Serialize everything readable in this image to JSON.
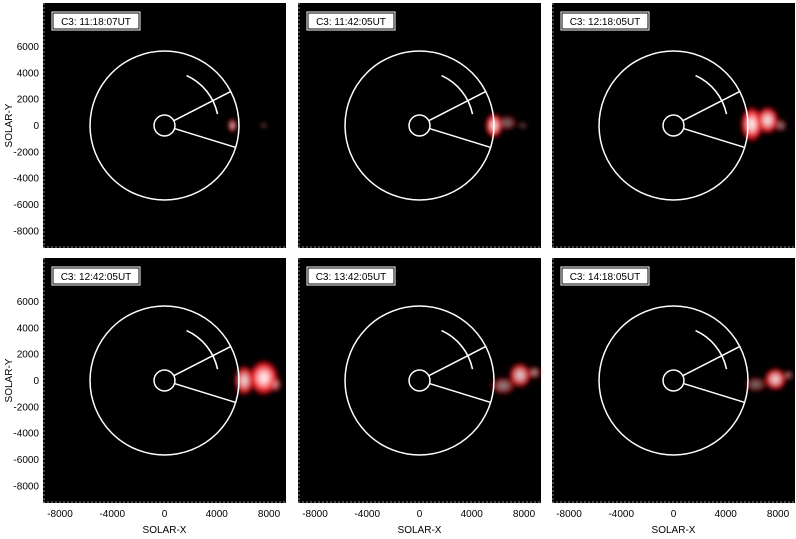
{
  "chart_data": {
    "type": "image-panels",
    "xlabel": "SOLAR-X",
    "ylabel": "SOLAR-Y",
    "xlim": [
      -9300,
      9300
    ],
    "ylim": [
      -9300,
      9300
    ],
    "xticks": [
      -8000,
      -4000,
      0,
      4000,
      8000
    ],
    "xtick_labels": [
      "-8000",
      "-4000",
      "0",
      "4000",
      "8000"
    ],
    "yticks": [
      6000,
      4000,
      2000,
      0,
      -2000,
      -4000,
      -6000,
      -8000
    ],
    "ytick_labels": [
      "6000",
      "4000",
      "2000",
      "0",
      "-2000",
      "-4000",
      "-6000",
      "-8000"
    ],
    "occulter_radius": 800,
    "fov_radius": 5700,
    "sector_angles_deg": [
      27,
      -17
    ],
    "arc": {
      "radius": 4150,
      "start_deg": 12,
      "end_deg": 66
    },
    "colors": {
      "background": "#000000",
      "overlay": "#ffffff",
      "cme": "#e8101a",
      "cme_core": "#ffffff"
    },
    "panels": [
      {
        "label": "C3: 11:18:07UT",
        "cme_blobs": [
          {
            "x": 5200,
            "y": 0,
            "rx": 350,
            "ry": 550,
            "intensity": 0.8
          },
          {
            "x": 7600,
            "y": 0,
            "rx": 280,
            "ry": 200,
            "intensity": 0.4
          }
        ]
      },
      {
        "label": "C3: 11:42:05UT",
        "cme_blobs": [
          {
            "x": 5700,
            "y": 0,
            "rx": 700,
            "ry": 1000,
            "intensity": 0.95
          },
          {
            "x": 6700,
            "y": 200,
            "rx": 800,
            "ry": 600,
            "intensity": 0.45
          },
          {
            "x": 7900,
            "y": 0,
            "rx": 400,
            "ry": 300,
            "intensity": 0.3
          }
        ]
      },
      {
        "label": "C3: 12:18:05UT",
        "cme_blobs": [
          {
            "x": 6000,
            "y": 100,
            "rx": 900,
            "ry": 1400,
            "intensity": 1.0
          },
          {
            "x": 7200,
            "y": 400,
            "rx": 900,
            "ry": 1100,
            "intensity": 0.95
          },
          {
            "x": 8200,
            "y": 0,
            "rx": 500,
            "ry": 500,
            "intensity": 0.5
          }
        ]
      },
      {
        "label": "C3: 12:42:05UT",
        "cme_blobs": [
          {
            "x": 6100,
            "y": 0,
            "rx": 800,
            "ry": 1200,
            "intensity": 0.9
          },
          {
            "x": 7600,
            "y": 200,
            "rx": 1200,
            "ry": 1400,
            "intensity": 1.0
          },
          {
            "x": 8500,
            "y": -300,
            "rx": 500,
            "ry": 600,
            "intensity": 0.6
          }
        ]
      },
      {
        "label": "C3: 13:42:05UT",
        "cme_blobs": [
          {
            "x": 6400,
            "y": -400,
            "rx": 1000,
            "ry": 700,
            "intensity": 0.55
          },
          {
            "x": 7700,
            "y": 400,
            "rx": 900,
            "ry": 1000,
            "intensity": 0.85
          },
          {
            "x": 8800,
            "y": 600,
            "rx": 500,
            "ry": 500,
            "intensity": 0.6
          }
        ]
      },
      {
        "label": "C3: 14:18:05UT",
        "cme_blobs": [
          {
            "x": 6300,
            "y": -300,
            "rx": 900,
            "ry": 600,
            "intensity": 0.45
          },
          {
            "x": 7800,
            "y": 100,
            "rx": 900,
            "ry": 900,
            "intensity": 0.9
          },
          {
            "x": 8800,
            "y": 400,
            "rx": 400,
            "ry": 400,
            "intensity": 0.5
          }
        ]
      }
    ]
  }
}
